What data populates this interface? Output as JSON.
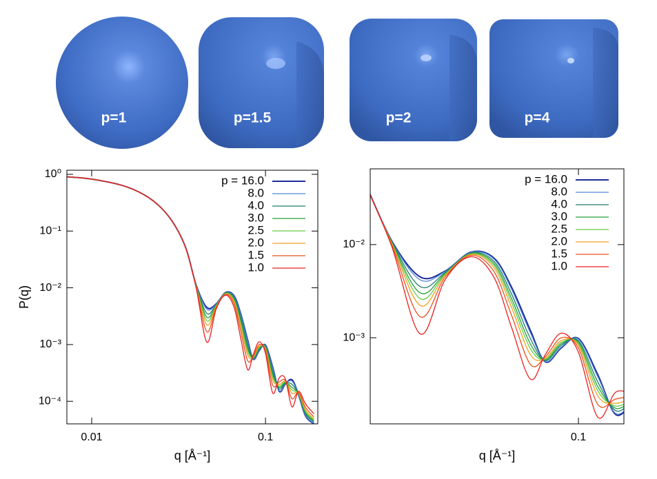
{
  "shapes": [
    {
      "label": "p=1"
    },
    {
      "label": "p=1.5"
    },
    {
      "label": "p=2"
    },
    {
      "label": "p=4"
    }
  ],
  "chart_data": [
    {
      "type": "line",
      "log_x": true,
      "log_y": true,
      "legend": "upper right",
      "x_label": "q [Å⁻¹]",
      "y_label": "P(q)",
      "xlim": [
        0.0072,
        0.2
      ],
      "ylim": [
        4e-05,
        1.18
      ],
      "xticks": [
        0.01,
        0.1
      ],
      "yticks": [
        {
          "value": 1,
          "label": "10⁰"
        },
        {
          "value": 0.1,
          "label": "10⁻¹"
        },
        {
          "value": 0.01,
          "label": "10⁻²"
        },
        {
          "value": 0.001,
          "label": "10⁻³"
        },
        {
          "value": 0.0001,
          "label": "10⁻⁴"
        }
      ],
      "x": [
        0.0072,
        0.01,
        0.015,
        0.02,
        0.025,
        0.03,
        0.035,
        0.04,
        0.046,
        0.052,
        0.059,
        0.066,
        0.072,
        0.079,
        0.085,
        0.092,
        0.1,
        0.11,
        0.12,
        0.13,
        0.142,
        0.155,
        0.17,
        0.19
      ],
      "series": [
        {
          "name": "p = 16.0",
          "color": "#1c2a9c",
          "values": [
            0.904,
            0.823,
            0.636,
            0.437,
            0.26,
            0.128,
            0.048,
            0.011,
            0.0045,
            0.0052,
            0.0083,
            0.0072,
            0.0035,
            0.0012,
            0.00055,
            0.00078,
            0.00098,
            0.0004,
            0.00015,
            0.0002,
            0.00024,
            0.00013,
            5.5e-05,
            4e-05
          ]
        },
        {
          "name": "8.0",
          "color": "#4f86d4",
          "values": [
            0.904,
            0.823,
            0.636,
            0.437,
            0.26,
            0.128,
            0.048,
            0.0109,
            0.00419,
            0.00514,
            0.00824,
            0.00703,
            0.00333,
            0.00113,
            0.000555,
            0.000794,
            0.000964,
            0.00038,
            0.000154,
            0.000202,
            0.000227,
            0.000131,
            5.63e-05,
            4.09e-05
          ]
        },
        {
          "name": "4.0",
          "color": "#1d7a6a",
          "values": [
            0.904,
            0.823,
            0.636,
            0.437,
            0.26,
            0.128,
            0.0475,
            0.0108,
            0.00354,
            0.00501,
            0.00813,
            0.00665,
            0.00296,
            0.00098,
            0.000568,
            0.00083,
            0.000925,
            0.000334,
            0.000165,
            0.000208,
            0.000199,
            0.000133,
            5.98e-05,
            4.29e-05
          ]
        },
        {
          "name": "3.0",
          "color": "#23a03c",
          "values": [
            0.904,
            0.823,
            0.636,
            0.437,
            0.26,
            0.128,
            0.0475,
            0.0106,
            0.00303,
            0.0049,
            0.00803,
            0.00632,
            0.00265,
            0.000857,
            0.000579,
            0.000863,
            0.000892,
            0.000298,
            0.000175,
            0.000213,
            0.000176,
            0.000135,
            6.31e-05,
            4.48e-05
          ]
        },
        {
          "name": "2.5",
          "color": "#66cc44",
          "values": [
            0.904,
            0.823,
            0.636,
            0.437,
            0.26,
            0.128,
            0.0475,
            0.0105,
            0.00263,
            0.0048,
            0.00794,
            0.00603,
            0.0024,
            0.00076,
            0.000589,
            0.000895,
            0.000862,
            0.000269,
            0.000185,
            0.000218,
            0.000158,
            0.000137,
            6.63e-05,
            4.67e-05
          ]
        },
        {
          "name": "2.0",
          "color": "#f0a020",
          "values": [
            0.904,
            0.823,
            0.636,
            0.437,
            0.26,
            0.128,
            0.047,
            0.0103,
            0.00222,
            0.00467,
            0.00783,
            0.00569,
            0.00213,
            0.000657,
            0.000602,
            0.000935,
            0.000828,
            0.000237,
            0.000198,
            0.000224,
            0.000139,
            0.00014,
            7.04e-05,
            4.9e-05
          ]
        },
        {
          "name": "1.5",
          "color": "#e8501c",
          "values": [
            0.904,
            0.823,
            0.636,
            0.437,
            0.26,
            0.128,
            0.047,
            0.01,
            0.00168,
            0.00448,
            0.00766,
            0.00518,
            0.00175,
            0.000517,
            0.000625,
            0.001,
            0.000774,
            0.000192,
            0.00022,
            0.000234,
            0.000111,
            0.000144,
            7.77e-05,
            5.31e-05
          ]
        },
        {
          "name": "1.0",
          "color": "#e82020",
          "values": [
            0.904,
            0.823,
            0.636,
            0.437,
            0.26,
            0.128,
            0.047,
            0.0096,
            0.0011,
            0.0042,
            0.0074,
            0.0045,
            0.0013,
            0.00036,
            0.00066,
            0.00112,
            0.0007,
            0.00014,
            0.00026,
            0.00025,
            8e-05,
            0.00015,
            9e-05,
            6e-05
          ]
        }
      ]
    },
    {
      "type": "line",
      "log_x": true,
      "log_y": true,
      "legend": "upper right",
      "x_label": "q [Å⁻¹]",
      "xlim": [
        0.036,
        0.125
      ],
      "ylim": [
        0.000119,
        0.065
      ],
      "xticks": [
        0.1
      ],
      "yticks": [
        {
          "value": 0.01,
          "label": "10⁻²"
        },
        {
          "value": 0.001,
          "label": "10⁻³"
        }
      ],
      "x": [
        0.035,
        0.04,
        0.046,
        0.052,
        0.059,
        0.066,
        0.072,
        0.079,
        0.085,
        0.092,
        0.1,
        0.11,
        0.12,
        0.13
      ],
      "series": [
        {
          "name": "p = 16.0",
          "color": "#1c2a9c",
          "values": [
            0.048,
            0.011,
            0.0045,
            0.0052,
            0.0083,
            0.0072,
            0.0035,
            0.0012,
            0.00055,
            0.00078,
            0.00098,
            0.0004,
            0.00015,
            0.0002
          ]
        },
        {
          "name": "8.0",
          "color": "#4f86d4",
          "values": [
            0.048,
            0.0109,
            0.00419,
            0.00514,
            0.00824,
            0.00703,
            0.00333,
            0.00113,
            0.000555,
            0.000794,
            0.000964,
            0.00038,
            0.000154,
            0.000202
          ]
        },
        {
          "name": "4.0",
          "color": "#1d7a6a",
          "values": [
            0.0475,
            0.0108,
            0.00354,
            0.00501,
            0.00813,
            0.00665,
            0.00296,
            0.00098,
            0.000568,
            0.00083,
            0.000925,
            0.000334,
            0.000165,
            0.000208
          ]
        },
        {
          "name": "3.0",
          "color": "#23a03c",
          "values": [
            0.0475,
            0.0106,
            0.00303,
            0.0049,
            0.00803,
            0.00632,
            0.00265,
            0.000857,
            0.000579,
            0.000863,
            0.000892,
            0.000298,
            0.000175,
            0.000213
          ]
        },
        {
          "name": "2.5",
          "color": "#66cc44",
          "values": [
            0.0475,
            0.0105,
            0.00263,
            0.0048,
            0.00794,
            0.00603,
            0.0024,
            0.00076,
            0.000589,
            0.000895,
            0.000862,
            0.000269,
            0.000185,
            0.000218
          ]
        },
        {
          "name": "2.0",
          "color": "#f0a020",
          "values": [
            0.047,
            0.0103,
            0.00222,
            0.00467,
            0.00783,
            0.00569,
            0.00213,
            0.000657,
            0.000602,
            0.000935,
            0.000828,
            0.000237,
            0.000198,
            0.000224
          ]
        },
        {
          "name": "1.5",
          "color": "#e8501c",
          "values": [
            0.047,
            0.01,
            0.00168,
            0.00448,
            0.00766,
            0.00518,
            0.00175,
            0.000517,
            0.000625,
            0.001,
            0.000774,
            0.000192,
            0.00022,
            0.000234
          ]
        },
        {
          "name": "1.0",
          "color": "#e82020",
          "values": [
            0.047,
            0.0096,
            0.0011,
            0.0042,
            0.0074,
            0.0045,
            0.0013,
            0.00036,
            0.00066,
            0.00112,
            0.0007,
            0.00014,
            0.00026,
            0.00025
          ]
        }
      ]
    }
  ]
}
